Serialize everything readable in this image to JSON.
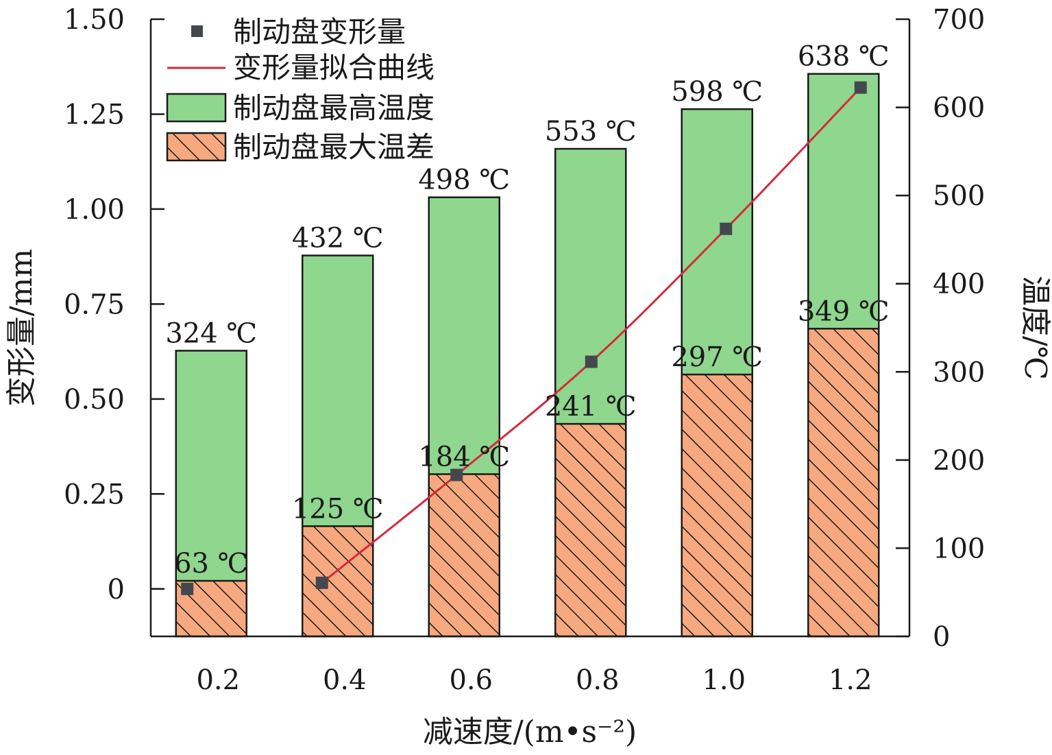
{
  "chart_data": {
    "type": "bar",
    "categories": [
      "0.2",
      "0.4",
      "0.6",
      "0.8",
      "1.0",
      "1.2"
    ],
    "xlabel": "减速度/(m•s⁻²)",
    "ylabel_left": "变形量/mm",
    "ylabel_right": "温度/℃",
    "ylim_left": [
      -0.125,
      1.5
    ],
    "ylim_right": [
      0,
      700
    ],
    "yticks_left": [
      "0",
      "0.25",
      "0.50",
      "0.75",
      "1.00",
      "1.25",
      "1.50"
    ],
    "yticks_left_values": [
      0,
      0.25,
      0.5,
      0.75,
      1.0,
      1.25,
      1.5
    ],
    "yticks_right": [
      "0",
      "100",
      "200",
      "300",
      "400",
      "500",
      "600",
      "700"
    ],
    "yticks_right_values": [
      0,
      100,
      200,
      300,
      400,
      500,
      600,
      700
    ],
    "legend_position": "top-left",
    "series": [
      {
        "name": "制动盘最高温度",
        "kind": "bar",
        "axis": "right",
        "color": "#8fd68f",
        "values": [
          324,
          432,
          498,
          553,
          598,
          638
        ],
        "labels": [
          "324 ℃",
          "432 ℃",
          "498 ℃",
          "553 ℃",
          "598 ℃",
          "638 ℃"
        ]
      },
      {
        "name": "制动盘最大温差",
        "kind": "bar-hatched",
        "axis": "right",
        "color": "#f6a97e",
        "values": [
          63,
          125,
          184,
          241,
          297,
          349
        ],
        "labels": [
          "63 ℃",
          "125 ℃",
          "184 ℃",
          "241 ℃",
          "297 ℃",
          "349 ℃"
        ]
      },
      {
        "name": "制动盘变形量",
        "kind": "scatter",
        "axis": "left",
        "color": "#45474f",
        "x": [
          0.2,
          0.4,
          0.6,
          0.8,
          1.0,
          1.2
        ],
        "values": [
          0.0,
          0.016,
          0.3,
          0.598,
          0.948,
          1.32
        ]
      },
      {
        "name": "变形量拟合曲线",
        "kind": "line",
        "axis": "left",
        "color": "#d6283c",
        "x": [
          0.4,
          0.6,
          0.8,
          1.0,
          1.2
        ],
        "values": [
          0.016,
          0.3,
          0.598,
          0.948,
          1.32
        ]
      }
    ]
  }
}
